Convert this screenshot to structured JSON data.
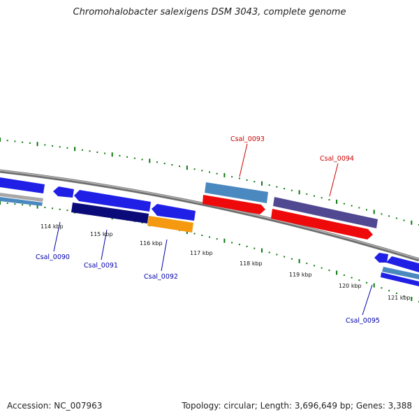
{
  "title": "Chromohalobacter salexigens DSM 3043, complete genome",
  "accession": "Accession: NC_007963",
  "topology": "Topology: circular; Length: 3,696,649 bp; Genes: 3,388",
  "ticks": [
    "114 kbp",
    "115 kbp",
    "116 kbp",
    "117 kbp",
    "118 kbp",
    "119 kbp",
    "120 kbp",
    "121 kbp"
  ],
  "genes": [
    {
      "name": "Csal_0090",
      "color": "#0000aa"
    },
    {
      "name": "Csal_0091",
      "color": "#0000aa"
    },
    {
      "name": "Csal_0092",
      "color": "#0000aa"
    },
    {
      "name": "Csal_0093",
      "color": "#cc0000"
    },
    {
      "name": "Csal_0094",
      "color": "#cc0000"
    },
    {
      "name": "Csal_0095",
      "color": "#0000aa"
    }
  ],
  "colors": {
    "backbone": "#808080",
    "blue": "#1f1fe6",
    "navy": "#0a0a78",
    "steel": "#4a88c0",
    "red": "#ee0a0a",
    "purple": "#504890",
    "orange": "#f59a10",
    "gray": "#a8a8a8",
    "dots": "#0a7a0a"
  }
}
